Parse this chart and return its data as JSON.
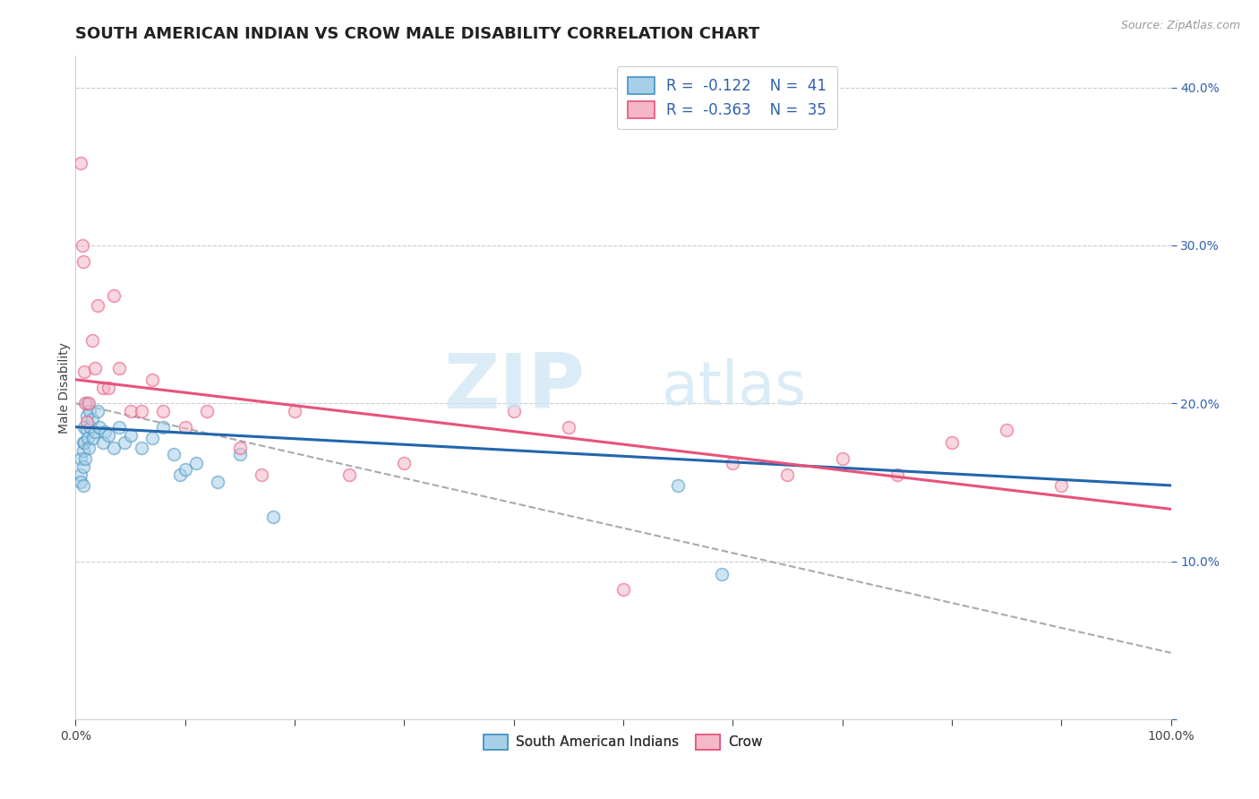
{
  "title": "SOUTH AMERICAN INDIAN VS CROW MALE DISABILITY CORRELATION CHART",
  "source_text": "Source: ZipAtlas.com",
  "ylabel": "Male Disability",
  "xlim": [
    0,
    1.0
  ],
  "ylim": [
    0,
    0.42
  ],
  "xtick_positions": [
    0.0,
    0.1,
    0.2,
    0.3,
    0.4,
    0.5,
    0.6,
    0.7,
    0.8,
    0.9,
    1.0
  ],
  "xticklabels_shown": {
    "0.0": "0.0%",
    "1.0": "100.0%"
  },
  "yticks_right": [
    0.0,
    0.1,
    0.2,
    0.3,
    0.4
  ],
  "yticklabels_right": [
    "",
    "10.0%",
    "20.0%",
    "30.0%",
    "40.0%"
  ],
  "watermark_zip": "ZIP",
  "watermark_atlas": "atlas",
  "blue_color": "#a8cfe8",
  "blue_edge_color": "#4393c3",
  "pink_color": "#f4b8c8",
  "pink_edge_color": "#e8527a",
  "blue_line_color": "#2166ac",
  "pink_line_color": "#e8527a",
  "dash_line_color": "#aaaaaa",
  "legend_text_color": "#3060b0",
  "blue_scatter_x": [
    0.005,
    0.005,
    0.005,
    0.007,
    0.007,
    0.007,
    0.007,
    0.008,
    0.008,
    0.009,
    0.01,
    0.01,
    0.01,
    0.011,
    0.012,
    0.013,
    0.014,
    0.015,
    0.016,
    0.018,
    0.02,
    0.022,
    0.025,
    0.027,
    0.03,
    0.035,
    0.04,
    0.045,
    0.05,
    0.06,
    0.07,
    0.08,
    0.09,
    0.095,
    0.1,
    0.11,
    0.13,
    0.15,
    0.18,
    0.55,
    0.59
  ],
  "blue_scatter_y": [
    0.165,
    0.155,
    0.15,
    0.175,
    0.17,
    0.16,
    0.148,
    0.185,
    0.175,
    0.165,
    0.2,
    0.192,
    0.183,
    0.178,
    0.172,
    0.195,
    0.185,
    0.19,
    0.178,
    0.182,
    0.195,
    0.185,
    0.175,
    0.182,
    0.18,
    0.172,
    0.185,
    0.175,
    0.18,
    0.172,
    0.178,
    0.185,
    0.168,
    0.155,
    0.158,
    0.162,
    0.15,
    0.168,
    0.128,
    0.148,
    0.092
  ],
  "pink_scatter_x": [
    0.005,
    0.006,
    0.007,
    0.008,
    0.009,
    0.01,
    0.012,
    0.015,
    0.018,
    0.02,
    0.025,
    0.03,
    0.035,
    0.04,
    0.05,
    0.06,
    0.07,
    0.08,
    0.1,
    0.12,
    0.15,
    0.17,
    0.2,
    0.25,
    0.3,
    0.4,
    0.45,
    0.5,
    0.6,
    0.65,
    0.7,
    0.75,
    0.8,
    0.85,
    0.9
  ],
  "pink_scatter_y": [
    0.352,
    0.3,
    0.29,
    0.22,
    0.2,
    0.188,
    0.2,
    0.24,
    0.222,
    0.262,
    0.21,
    0.21,
    0.268,
    0.222,
    0.195,
    0.195,
    0.215,
    0.195,
    0.185,
    0.195,
    0.172,
    0.155,
    0.195,
    0.155,
    0.162,
    0.195,
    0.185,
    0.082,
    0.162,
    0.155,
    0.165,
    0.155,
    0.175,
    0.183,
    0.148
  ],
  "blue_line_x": [
    0.0,
    1.0
  ],
  "blue_line_y": [
    0.185,
    0.148
  ],
  "pink_line_x": [
    0.0,
    1.0
  ],
  "pink_line_y": [
    0.215,
    0.133
  ],
  "dash_line_x": [
    0.0,
    1.0
  ],
  "dash_line_y": [
    0.2,
    0.042
  ],
  "background_color": "#ffffff",
  "grid_color": "#cccccc",
  "title_fontsize": 13,
  "axis_label_fontsize": 10,
  "tick_fontsize": 10,
  "scatter_size": 100,
  "scatter_alpha": 0.55,
  "scatter_linewidth": 1.2
}
